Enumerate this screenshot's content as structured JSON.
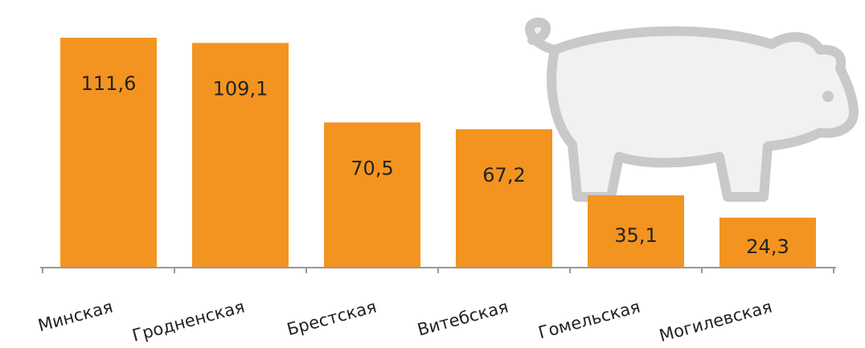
{
  "chart_data": {
    "type": "bar",
    "categories": [
      "Минская",
      "Гродненская",
      "Брестская",
      "Витебская",
      "Гомельская",
      "Могилевская"
    ],
    "values": [
      111.6,
      109.1,
      70.5,
      67.2,
      35.1,
      24.3
    ],
    "value_labels": [
      "111,6",
      "109,1",
      "70,5",
      "67,2",
      "35,1",
      "24,3"
    ],
    "color": "#f39420"
  }
}
